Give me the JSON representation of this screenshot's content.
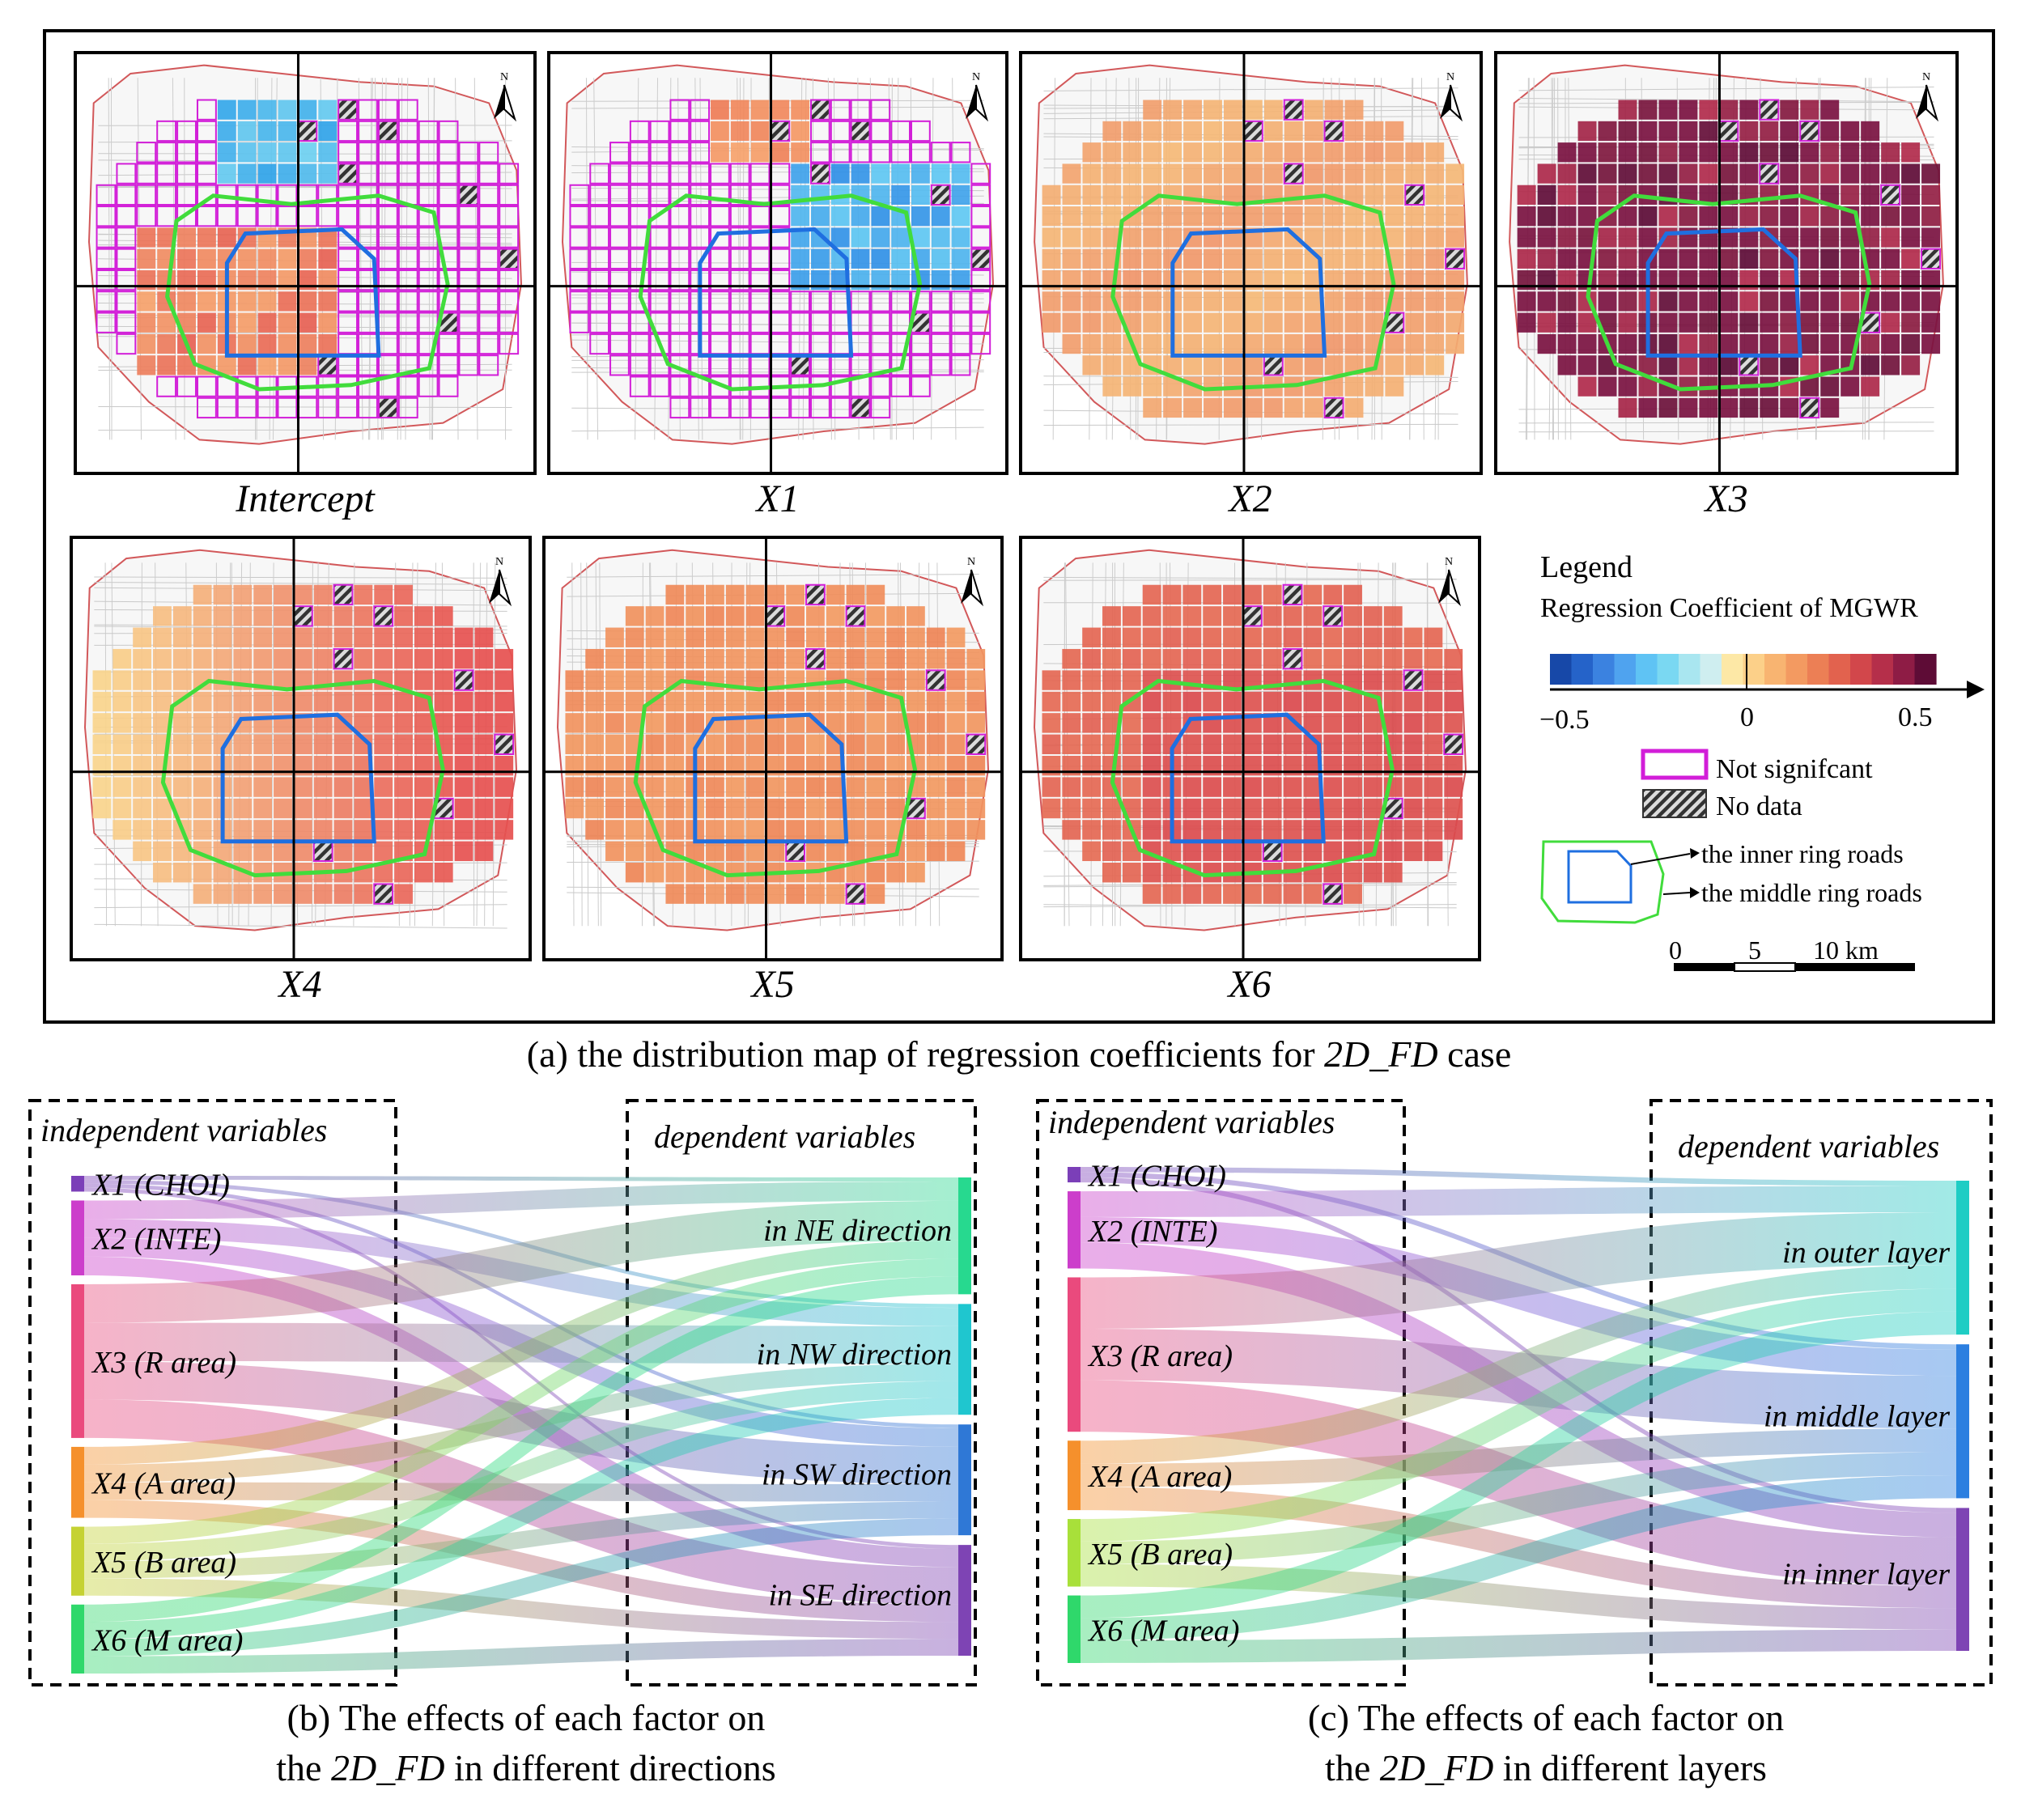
{
  "panel_a": {
    "maps": [
      {
        "key": "intercept",
        "label": "Intercept",
        "scheme": "intercept"
      },
      {
        "key": "x1",
        "label": "X1",
        "scheme": "x1"
      },
      {
        "key": "x2",
        "label": "X2",
        "scheme": "x2"
      },
      {
        "key": "x3",
        "label": "X3",
        "scheme": "x3"
      },
      {
        "key": "x4",
        "label": "X4",
        "scheme": "x4"
      },
      {
        "key": "x5",
        "label": "X5",
        "scheme": "x5"
      },
      {
        "key": "x6",
        "label": "X6",
        "scheme": "x6"
      }
    ],
    "north_label": "N",
    "legend": {
      "title": "Legend",
      "subtitle": "Regression Coefficient of MGWR",
      "ticks": [
        "−0.5",
        "0",
        "0.5"
      ],
      "ramp_colors": [
        "#1748a8",
        "#2563c9",
        "#3b82e0",
        "#4fa3ef",
        "#5fc3f4",
        "#7ad8f2",
        "#a9e6f0",
        "#cfeef0",
        "#fde8a6",
        "#fcd089",
        "#f8b471",
        "#f39a61",
        "#ec7f55",
        "#e2624e",
        "#d2474b",
        "#b52f4a",
        "#8e1c45",
        "#5e0c36"
      ],
      "not_significant": "Not signifcant",
      "no_data": "No data",
      "inner_ring": "the inner ring roads",
      "middle_ring": "the middle ring roads",
      "scale_ticks": [
        "0",
        "5",
        "10 km"
      ]
    },
    "caption_pre": "(a) the distribution map of regression coefficients for ",
    "caption_em": "2D_FD",
    "caption_post": " case"
  },
  "panel_b": {
    "left_title": "independent variables",
    "right_title": "dependent variables",
    "sources": [
      {
        "label": "X1 (CHOI)",
        "color": "#7b3fb8",
        "weight": 0.8
      },
      {
        "label": "X2 (INTE)",
        "color": "#cc3ecb",
        "weight": 3.8
      },
      {
        "label": "X3 (R area)",
        "color": "#ea4a7d",
        "weight": 7.8
      },
      {
        "label": "X4 (A area)",
        "color": "#f5902c",
        "weight": 3.6
      },
      {
        "label": "X5 (B area)",
        "color": "#c5d233",
        "weight": 3.5
      },
      {
        "label": "X6 (M area)",
        "color": "#2fd86b",
        "weight": 3.5
      }
    ],
    "targets": [
      {
        "label": "in NE direction",
        "color": "#27d98f",
        "weight": 5.8
      },
      {
        "label": "in NW direction",
        "color": "#1fc6cf",
        "weight": 5.5
      },
      {
        "label": "in SW direction",
        "color": "#2f78d6",
        "weight": 5.5
      },
      {
        "label": "in SE direction",
        "color": "#7e44b4",
        "weight": 5.5
      }
    ],
    "caption_l1": "(b) The effects of each factor  on",
    "caption_l2_pre": "the ",
    "caption_l2_em": "2D_FD",
    "caption_l2_post": " in different directions"
  },
  "panel_c": {
    "left_title": "independent variables",
    "right_title": "dependent variables",
    "sources": [
      {
        "label": "X1 (CHOI)",
        "color": "#7b3fb8",
        "weight": 0.8
      },
      {
        "label": "X2 (INTE)",
        "color": "#cc3ecb",
        "weight": 4.0
      },
      {
        "label": "X3 (R area)",
        "color": "#ea4a7d",
        "weight": 8.0
      },
      {
        "label": "X4 (A area)",
        "color": "#f5902c",
        "weight": 3.6
      },
      {
        "label": "X5 (B area)",
        "color": "#a8e03a",
        "weight": 3.5
      },
      {
        "label": "X6 (M area)",
        "color": "#2fd86b",
        "weight": 3.5
      }
    ],
    "targets": [
      {
        "label": "in outer layer",
        "color": "#1fcdc4",
        "weight": 7.0
      },
      {
        "label": "in middle layer",
        "color": "#2c7fe0",
        "weight": 7.0
      },
      {
        "label": "in inner layer",
        "color": "#7e44b4",
        "weight": 6.5
      }
    ],
    "caption_l1": "(c) The effects of each factor  on",
    "caption_l2_pre": "the ",
    "caption_l2_em": "2D_FD",
    "caption_l2_post": " in different layers"
  }
}
